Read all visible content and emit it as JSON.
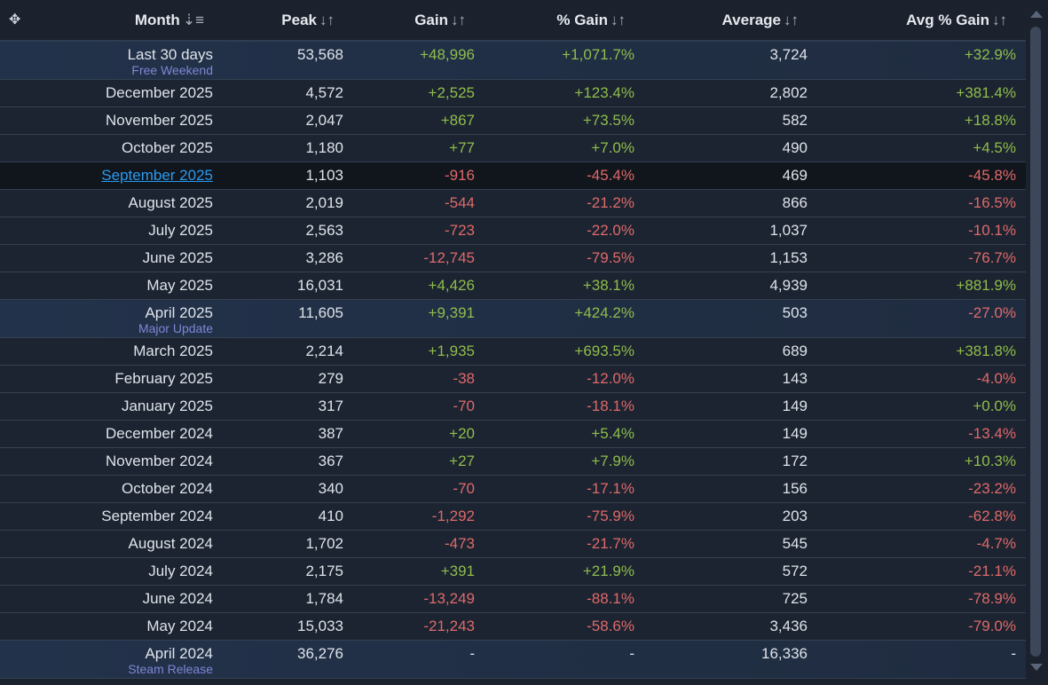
{
  "columns": [
    {
      "label": "Month",
      "sort": "sorted-desc"
    },
    {
      "label": "Peak",
      "sort": "unsorted"
    },
    {
      "label": "Gain",
      "sort": "unsorted"
    },
    {
      "label": "% Gain",
      "sort": "unsorted"
    },
    {
      "label": "Average",
      "sort": "unsorted"
    },
    {
      "label": "Avg % Gain",
      "sort": "unsorted"
    }
  ],
  "colors": {
    "positive": "#8fbd4c",
    "negative": "#de6a6a",
    "link": "#2a9bf0",
    "note": "#7f86d6"
  },
  "rows": [
    {
      "month": "Last 30 days",
      "note": "Free Weekend",
      "peak": "53,568",
      "gain": "+48,996",
      "pgain": "+1,071.7%",
      "avg": "3,724",
      "apgain": "+32.9%"
    },
    {
      "month": "December 2025",
      "peak": "4,572",
      "gain": "+2,525",
      "pgain": "+123.4%",
      "avg": "2,802",
      "apgain": "+381.4%"
    },
    {
      "month": "November 2025",
      "peak": "2,047",
      "gain": "+867",
      "pgain": "+73.5%",
      "avg": "582",
      "apgain": "+18.8%"
    },
    {
      "month": "October 2025",
      "peak": "1,180",
      "gain": "+77",
      "pgain": "+7.0%",
      "avg": "490",
      "apgain": "+4.5%"
    },
    {
      "month": "September 2025",
      "hover": true,
      "peak": "1,103",
      "gain": "-916",
      "pgain": "-45.4%",
      "avg": "469",
      "apgain": "-45.8%"
    },
    {
      "month": "August 2025",
      "peak": "2,019",
      "gain": "-544",
      "pgain": "-21.2%",
      "avg": "866",
      "apgain": "-16.5%"
    },
    {
      "month": "July 2025",
      "peak": "2,563",
      "gain": "-723",
      "pgain": "-22.0%",
      "avg": "1,037",
      "apgain": "-10.1%"
    },
    {
      "month": "June 2025",
      "peak": "3,286",
      "gain": "-12,745",
      "pgain": "-79.5%",
      "avg": "1,153",
      "apgain": "-76.7%"
    },
    {
      "month": "May 2025",
      "peak": "16,031",
      "gain": "+4,426",
      "pgain": "+38.1%",
      "avg": "4,939",
      "apgain": "+881.9%"
    },
    {
      "month": "April 2025",
      "note": "Major Update",
      "peak": "11,605",
      "gain": "+9,391",
      "pgain": "+424.2%",
      "avg": "503",
      "apgain": "-27.0%"
    },
    {
      "month": "March 2025",
      "peak": "2,214",
      "gain": "+1,935",
      "pgain": "+693.5%",
      "avg": "689",
      "apgain": "+381.8%"
    },
    {
      "month": "February 2025",
      "peak": "279",
      "gain": "-38",
      "pgain": "-12.0%",
      "avg": "143",
      "apgain": "-4.0%"
    },
    {
      "month": "January 2025",
      "peak": "317",
      "gain": "-70",
      "pgain": "-18.1%",
      "avg": "149",
      "apgain": "+0.0%"
    },
    {
      "month": "December 2024",
      "peak": "387",
      "gain": "+20",
      "pgain": "+5.4%",
      "avg": "149",
      "apgain": "-13.4%"
    },
    {
      "month": "November 2024",
      "peak": "367",
      "gain": "+27",
      "pgain": "+7.9%",
      "avg": "172",
      "apgain": "+10.3%"
    },
    {
      "month": "October 2024",
      "peak": "340",
      "gain": "-70",
      "pgain": "-17.1%",
      "avg": "156",
      "apgain": "-23.2%"
    },
    {
      "month": "September 2024",
      "peak": "410",
      "gain": "-1,292",
      "pgain": "-75.9%",
      "avg": "203",
      "apgain": "-62.8%"
    },
    {
      "month": "August 2024",
      "peak": "1,702",
      "gain": "-473",
      "pgain": "-21.7%",
      "avg": "545",
      "apgain": "-4.7%"
    },
    {
      "month": "July 2024",
      "peak": "2,175",
      "gain": "+391",
      "pgain": "+21.9%",
      "avg": "572",
      "apgain": "-21.1%"
    },
    {
      "month": "June 2024",
      "peak": "1,784",
      "gain": "-13,249",
      "pgain": "-88.1%",
      "avg": "725",
      "apgain": "-78.9%"
    },
    {
      "month": "May 2024",
      "peak": "15,033",
      "gain": "-21,243",
      "pgain": "-58.6%",
      "avg": "3,436",
      "apgain": "-79.0%"
    },
    {
      "month": "April 2024",
      "note": "Steam Release",
      "peak": "36,276",
      "gain": "-",
      "pgain": "-",
      "avg": "16,336",
      "apgain": "-"
    }
  ]
}
